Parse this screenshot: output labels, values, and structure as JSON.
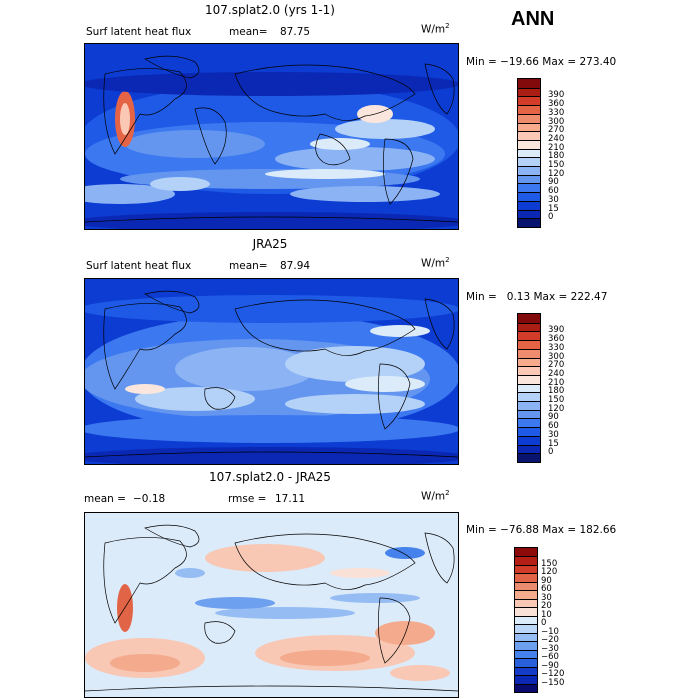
{
  "season": "ANN",
  "palette_main": [
    "#08146e",
    "#0a28b4",
    "#0c3cd2",
    "#1e5ae6",
    "#3c78f0",
    "#6496f0",
    "#8cb4f5",
    "#b4d2f8",
    "#dcebfa",
    "#fae6dc",
    "#fac8b4",
    "#f8aa8c",
    "#f08c6e",
    "#e66446",
    "#d23c28",
    "#aa1e14",
    "#820a0a"
  ],
  "palette_diff": [
    "#0a0a6e",
    "#0a28b4",
    "#143cc8",
    "#2860dc",
    "#4682ec",
    "#6ea0f0",
    "#96bcf4",
    "#bcd6f8",
    "#dcebfa",
    "#fae1d7",
    "#f8c8b4",
    "#f4aa8c",
    "#ec8c6e",
    "#e26446",
    "#d03c28",
    "#b41e14",
    "#8c0a0a"
  ],
  "chart_data": [
    {
      "type": "heatmap",
      "title": "107.splat2.0 (yrs 1-1)",
      "variable": "Surf latent heat flux",
      "units": "W/m",
      "units_sup": "2",
      "mean_label": "mean=",
      "mean": "87.75",
      "minmax": "Min = −19.66 Max = 273.40",
      "colorbar_levels": [
        "0",
        "15",
        "30",
        "60",
        "90",
        "120",
        "150",
        "180",
        "210",
        "240",
        "270",
        "300",
        "330",
        "360",
        "390"
      ]
    },
    {
      "type": "heatmap",
      "title": "JRA25",
      "variable": "Surf latent heat flux",
      "units": "W/m",
      "units_sup": "2",
      "mean_label": "mean=",
      "mean": "87.94",
      "minmax": "Min =   0.13 Max = 222.47",
      "colorbar_levels": [
        "0",
        "15",
        "30",
        "60",
        "90",
        "120",
        "150",
        "180",
        "210",
        "240",
        "270",
        "300",
        "330",
        "360",
        "390"
      ]
    },
    {
      "type": "heatmap",
      "title": "107.splat2.0 - JRA25",
      "mean_label": "mean =",
      "mean": "−0.18",
      "rmse_label": "rmse =",
      "rmse": "17.11",
      "units": "W/m",
      "units_sup": "2",
      "minmax": "Min = −76.88 Max = 182.66",
      "colorbar_levels": [
        "−150",
        "−120",
        "−90",
        "−60",
        "−30",
        "−20",
        "−10",
        "0",
        "10",
        "20",
        "30",
        "60",
        "90",
        "120",
        "150"
      ]
    }
  ]
}
